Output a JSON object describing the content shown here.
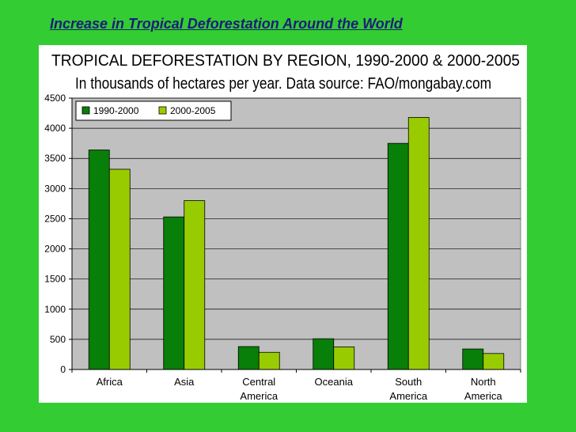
{
  "slide": {
    "title": "Increase in Tropical Deforestation Around the World"
  },
  "colors": {
    "background": "#33cc33",
    "title_text": "#1c1c7a",
    "plot_area": "#c0c0c0",
    "series_1990_2000": "#087f08",
    "series_2000_2005": "#99cc00"
  },
  "chart_data": {
    "type": "bar",
    "title": "TROPICAL DEFORESTATION BY REGION, 1990-2000 & 2000-2005",
    "subtitle": "In thousands of hectares per year.  Data source: FAO/mongabay.com",
    "xlabel": "",
    "ylabel": "",
    "ylim": [
      0,
      4500
    ],
    "yticks": [
      0,
      500,
      1000,
      1500,
      2000,
      2500,
      3000,
      3500,
      4000,
      4500
    ],
    "grid": true,
    "legend_position": "top-left",
    "categories": [
      [
        "Africa"
      ],
      [
        "Asia"
      ],
      [
        "Central",
        "America"
      ],
      [
        "Oceania"
      ],
      [
        "South",
        "America"
      ],
      [
        "North",
        "America"
      ]
    ],
    "series": [
      {
        "name": "1990-2000",
        "color": "#087f08",
        "values": [
          3640,
          2530,
          380,
          510,
          3750,
          340
        ]
      },
      {
        "name": "2000-2005",
        "color": "#99cc00",
        "values": [
          3320,
          2800,
          285,
          375,
          4180,
          265
        ]
      }
    ]
  }
}
